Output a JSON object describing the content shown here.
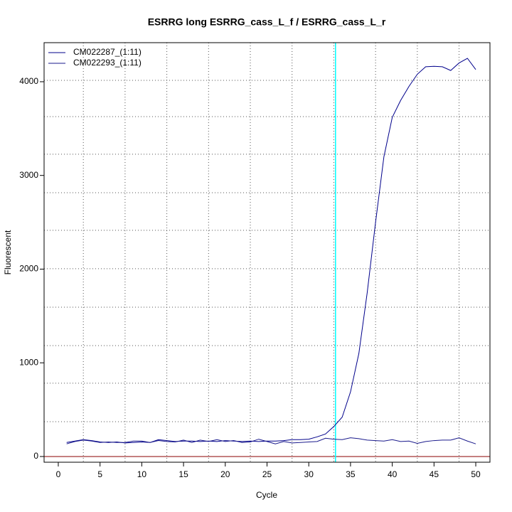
{
  "chart_data": {
    "type": "line",
    "title": "ESRRG long ESRRG_cass_L_f / ESRRG_cass_L_r",
    "x_label": "Cycle",
    "y_label": "Fluorescent",
    "x": [
      1,
      2,
      3,
      4,
      5,
      6,
      7,
      8,
      9,
      10,
      11,
      12,
      13,
      14,
      15,
      16,
      17,
      18,
      19,
      20,
      21,
      22,
      23,
      24,
      25,
      26,
      27,
      28,
      29,
      30,
      31,
      32,
      33,
      34,
      35,
      36,
      37,
      38,
      39,
      40,
      41,
      42,
      43,
      44,
      45,
      46,
      47,
      48,
      49,
      50
    ],
    "series": [
      {
        "name": "CM022287_(1:11)",
        "color": "#00008b",
        "values": [
          150,
          165,
          180,
          170,
          155,
          150,
          155,
          145,
          150,
          155,
          150,
          180,
          170,
          160,
          165,
          165,
          160,
          165,
          160,
          170,
          165,
          160,
          165,
          160,
          165,
          165,
          170,
          180,
          180,
          185,
          210,
          240,
          320,
          420,
          690,
          1100,
          1750,
          2500,
          3200,
          3620,
          3800,
          3950,
          4080,
          4160,
          4165,
          4160,
          4120,
          4200,
          4250,
          4130
        ]
      },
      {
        "name": "CM022293_(1:11)",
        "color": "#1a1a8c",
        "values": [
          135,
          160,
          175,
          165,
          150,
          155,
          150,
          150,
          165,
          165,
          150,
          170,
          160,
          155,
          175,
          150,
          175,
          160,
          180,
          160,
          170,
          150,
          155,
          185,
          160,
          135,
          160,
          145,
          150,
          155,
          160,
          195,
          185,
          180,
          200,
          190,
          175,
          170,
          165,
          180,
          160,
          165,
          140,
          160,
          170,
          175,
          175,
          200,
          165,
          135
        ]
      }
    ],
    "xlim": [
      -1.7,
      51.7
    ],
    "ylim": [
      -61,
      4417
    ],
    "xticks": [
      0,
      5,
      10,
      15,
      20,
      25,
      30,
      35,
      40,
      45,
      50
    ],
    "yticks": [
      0,
      1000,
      2000,
      3000,
      4000
    ],
    "x_grid": [
      3,
      8,
      13,
      18,
      23,
      28,
      33,
      38,
      43,
      48
    ],
    "y_grid": [
      372,
      782,
      1184,
      1594,
      2004,
      2414,
      2816,
      3226,
      3628,
      4015
    ],
    "threshold_x": 33.2,
    "threshold_color": "#00ffff",
    "baseline_y": 0,
    "baseline_color": "#8b0000",
    "legend": "top-left"
  }
}
